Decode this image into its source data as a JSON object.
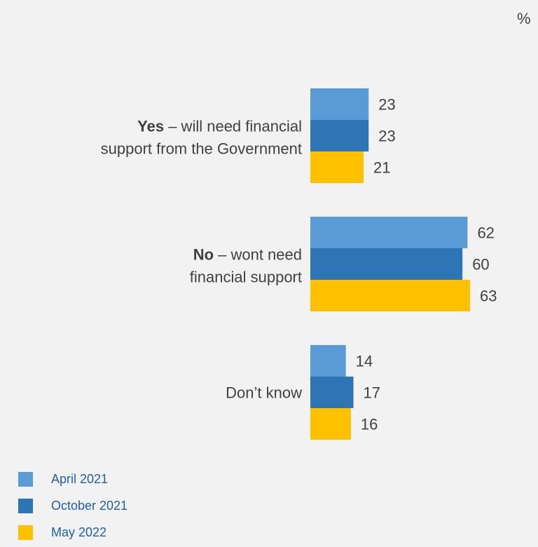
{
  "unit_label": "%",
  "chart_data": {
    "type": "bar",
    "orientation": "horizontal",
    "categories": [
      {
        "bold": "Yes",
        "rest_line1": " – will need financial",
        "line2": "support from the Government"
      },
      {
        "bold": "No",
        "rest_line1": " – wont need",
        "line2": "financial support"
      },
      {
        "bold": "",
        "rest_line1": "Don’t know",
        "line2": ""
      }
    ],
    "series": [
      {
        "name": "April 2021",
        "color": "#5b9bd5",
        "values": [
          23,
          62,
          14
        ]
      },
      {
        "name": "October 2021",
        "color": "#2e75b6",
        "values": [
          23,
          60,
          17
        ]
      },
      {
        "name": "May 2022",
        "color": "#ffc000",
        "values": [
          21,
          63,
          16
        ]
      }
    ],
    "xlim": [
      0,
      100
    ],
    "grid": false,
    "legend_position": "bottom-left"
  }
}
